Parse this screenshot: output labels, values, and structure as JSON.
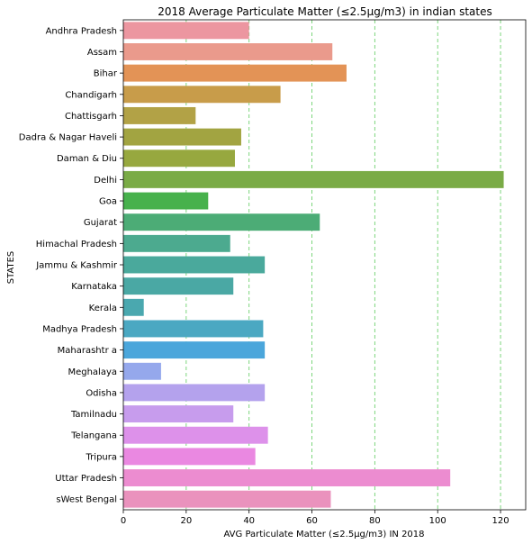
{
  "chart_data": {
    "type": "bar",
    "orientation": "horizontal",
    "title": "2018  Average Particulate Matter (≤2.5μg/m3) in indian states",
    "xlabel": "AVG Particulate Matter (≤2.5μg/m3) IN 2018",
    "ylabel": "STATES",
    "xlim": [
      0,
      128
    ],
    "xticks": [
      0,
      20,
      40,
      60,
      80,
      100,
      120
    ],
    "grid": "vertical dashed",
    "grid_color": "#6fd16f",
    "categories": [
      "Andhra Pradesh",
      "Assam",
      "Bihar",
      "Chandigarh",
      "Chattisgarh",
      "Dadra & Nagar Haveli",
      "Daman & Diu",
      "Delhi",
      "Goa",
      "Gujarat",
      "Himachal Pradesh",
      "Jammu & Kashmir",
      "Karnataka",
      "Kerala",
      "Madhya Pradesh",
      "Maharashtr a",
      "Meghalaya",
      "Odisha",
      "Tamilnadu",
      "Telangana",
      "Tripura",
      "Uttar Pradesh",
      "sWest Bengal"
    ],
    "values": [
      40,
      66.5,
      71,
      50,
      23,
      37.5,
      35.5,
      121,
      27,
      62.5,
      34,
      45,
      35,
      6.5,
      44.5,
      45,
      12,
      45,
      35,
      46,
      42,
      104,
      66
    ],
    "colors": [
      "#ec96a0",
      "#ea9a8c",
      "#e39356",
      "#c89c4a",
      "#b2a246",
      "#a2a441",
      "#97a83f",
      "#7aab46",
      "#47b14c",
      "#4cac76",
      "#4caa8f",
      "#4aa99c",
      "#4aa8a4",
      "#4aa8af",
      "#4ba8c2",
      "#4ba6db",
      "#95a8ec",
      "#b4a2ed",
      "#c79ced",
      "#dd91ea",
      "#ea88e1",
      "#ec8cd0",
      "#ea92bd"
    ]
  }
}
